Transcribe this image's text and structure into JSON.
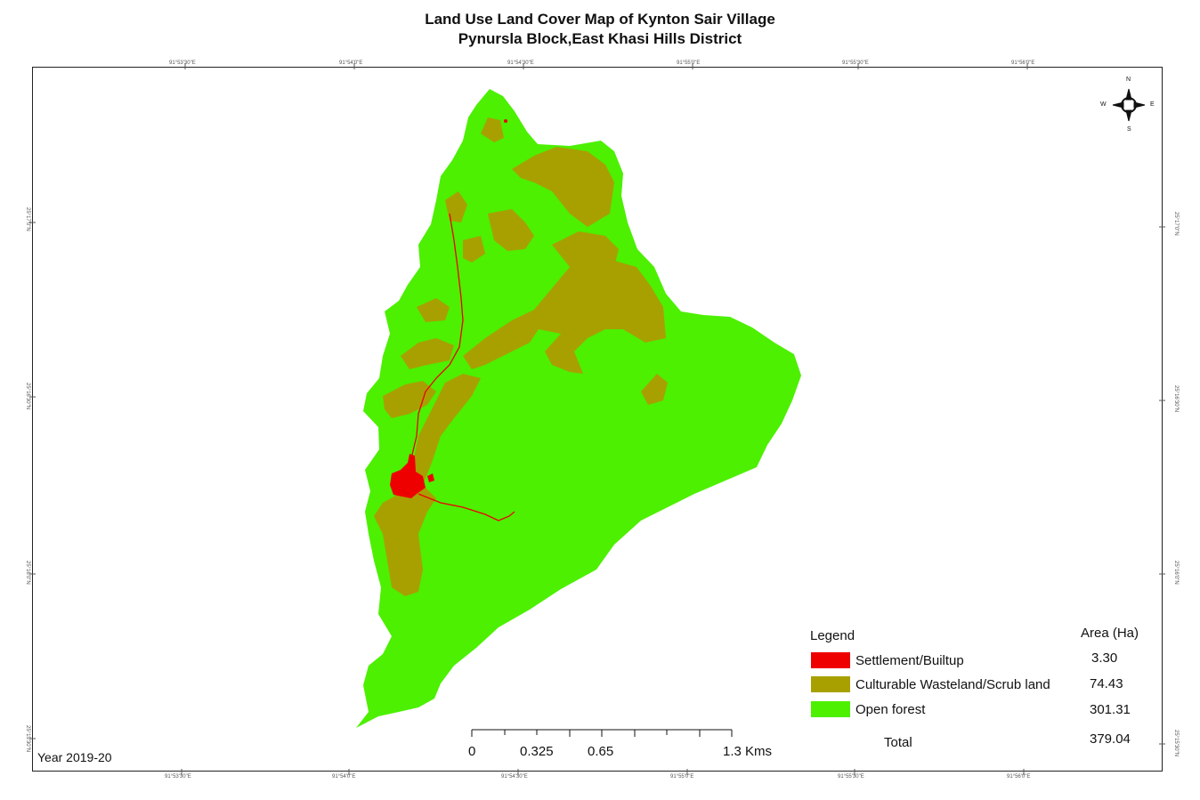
{
  "title": {
    "line1": "Land Use Land Cover Map of Kynton Sair Village",
    "line2": "Pynursla Block,East Khasi Hills District"
  },
  "coordinates": {
    "top": [
      "91°53'30\"E",
      "91°54'0\"E",
      "91°54'30\"E",
      "91°55'0\"E",
      "91°55'30\"E",
      "91°56'0\"E"
    ],
    "bottom": [
      "91°53'30\"E",
      "91°54'0\"E",
      "91°54'30\"E",
      "91°55'0\"E",
      "91°55'30\"E",
      "91°56'0\"E"
    ],
    "left": [
      "25°17'0\"N",
      "25°16'30\"N",
      "25°16'0\"N",
      "25°15'30\"N"
    ],
    "right": [
      "25°17'0\"N",
      "25°16'30\"N",
      "25°16'0\"N",
      "25°15'30\"N"
    ]
  },
  "compass": {
    "n": "N",
    "s": "S",
    "e": "E",
    "w": "W"
  },
  "legend": {
    "title": "Legend",
    "area_header": "Area (Ha)",
    "items": [
      {
        "label": "Settlement/Builtup",
        "area": "3.30",
        "color": "#ee0000"
      },
      {
        "label": "Culturable Wasteland/Scrub land",
        "area": "74.43",
        "color": "#a8a000"
      },
      {
        "label": "Open forest",
        "area": "301.31",
        "color": "#4cf000"
      }
    ],
    "total_label": "Total",
    "total_value": "379.04"
  },
  "year": "Year 2019-20",
  "scalebar": {
    "labels": [
      "0",
      "0.325",
      "0.65",
      "1.3 Kms"
    ]
  },
  "colors": {
    "settlement": "#ee0000",
    "scrub": "#a8a000",
    "forest": "#4cf000",
    "frame": "#222222"
  }
}
